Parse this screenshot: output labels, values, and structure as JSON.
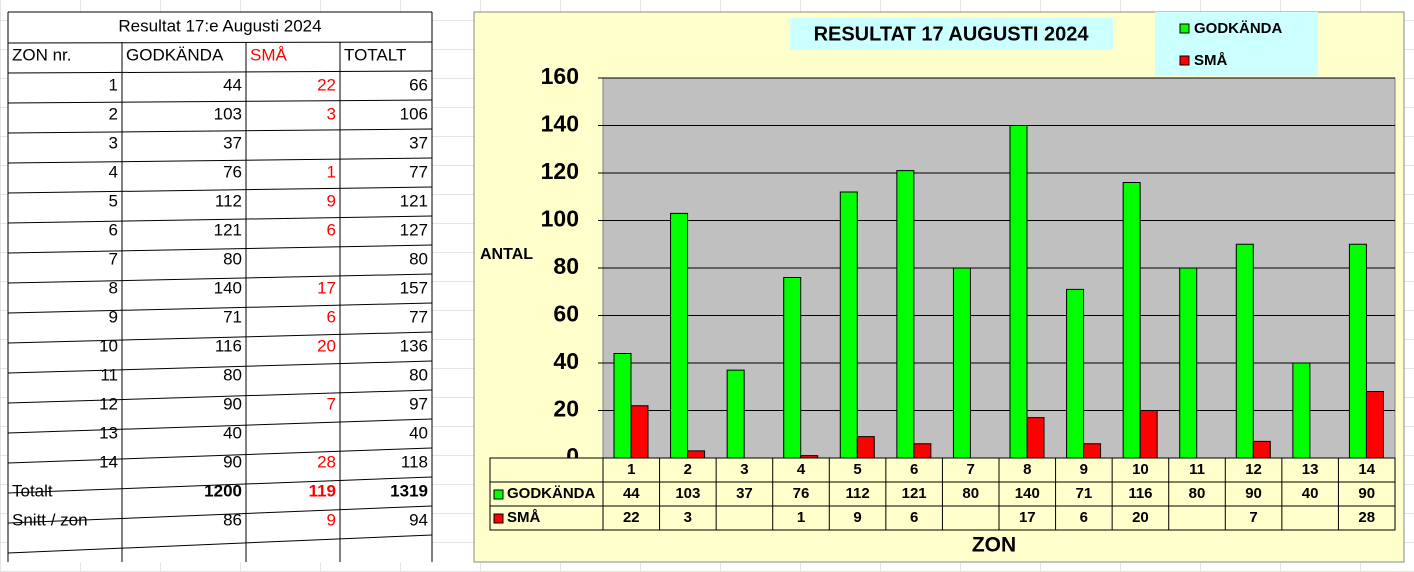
{
  "table": {
    "title": "Resultat 17:e Augusti 2024",
    "headers": [
      "ZON nr.",
      "GODKÄNDA",
      "SMÅ",
      "TOTALT"
    ],
    "rows": [
      [
        1,
        44,
        22,
        66
      ],
      [
        2,
        103,
        3,
        106
      ],
      [
        3,
        37,
        null,
        37
      ],
      [
        4,
        76,
        1,
        77
      ],
      [
        5,
        112,
        9,
        121
      ],
      [
        6,
        121,
        6,
        127
      ],
      [
        7,
        80,
        null,
        80
      ],
      [
        8,
        140,
        17,
        157
      ],
      [
        9,
        71,
        6,
        77
      ],
      [
        10,
        116,
        20,
        136
      ],
      [
        11,
        80,
        null,
        80
      ],
      [
        12,
        90,
        7,
        97
      ],
      [
        13,
        40,
        null,
        40
      ],
      [
        14,
        90,
        28,
        118
      ]
    ],
    "summary": [
      [
        "Totalt",
        1200,
        119,
        1319
      ],
      [
        "Snitt / zon",
        86,
        9,
        94
      ]
    ]
  },
  "chart_data": {
    "type": "bar",
    "title": "RESULTAT 17 AUGUSTI 2024",
    "y_label": "ANTAL",
    "x_label": "ZON",
    "categories": [
      "1",
      "2",
      "3",
      "4",
      "5",
      "6",
      "7",
      "8",
      "9",
      "10",
      "11",
      "12",
      "13",
      "14"
    ],
    "series": [
      {
        "name": "GODKÄNDA",
        "color": "#00ff00",
        "values": [
          44,
          103,
          37,
          76,
          112,
          121,
          80,
          140,
          71,
          116,
          80,
          90,
          40,
          90
        ]
      },
      {
        "name": "SMÅ",
        "color": "#ff0000",
        "values": [
          22,
          3,
          null,
          1,
          9,
          6,
          null,
          17,
          6,
          20,
          null,
          7,
          null,
          28
        ]
      }
    ],
    "ylim": [
      0,
      160
    ],
    "yticks": [
      0,
      20,
      40,
      60,
      80,
      100,
      120,
      140,
      160
    ],
    "grid": true,
    "legend": "top-right"
  }
}
